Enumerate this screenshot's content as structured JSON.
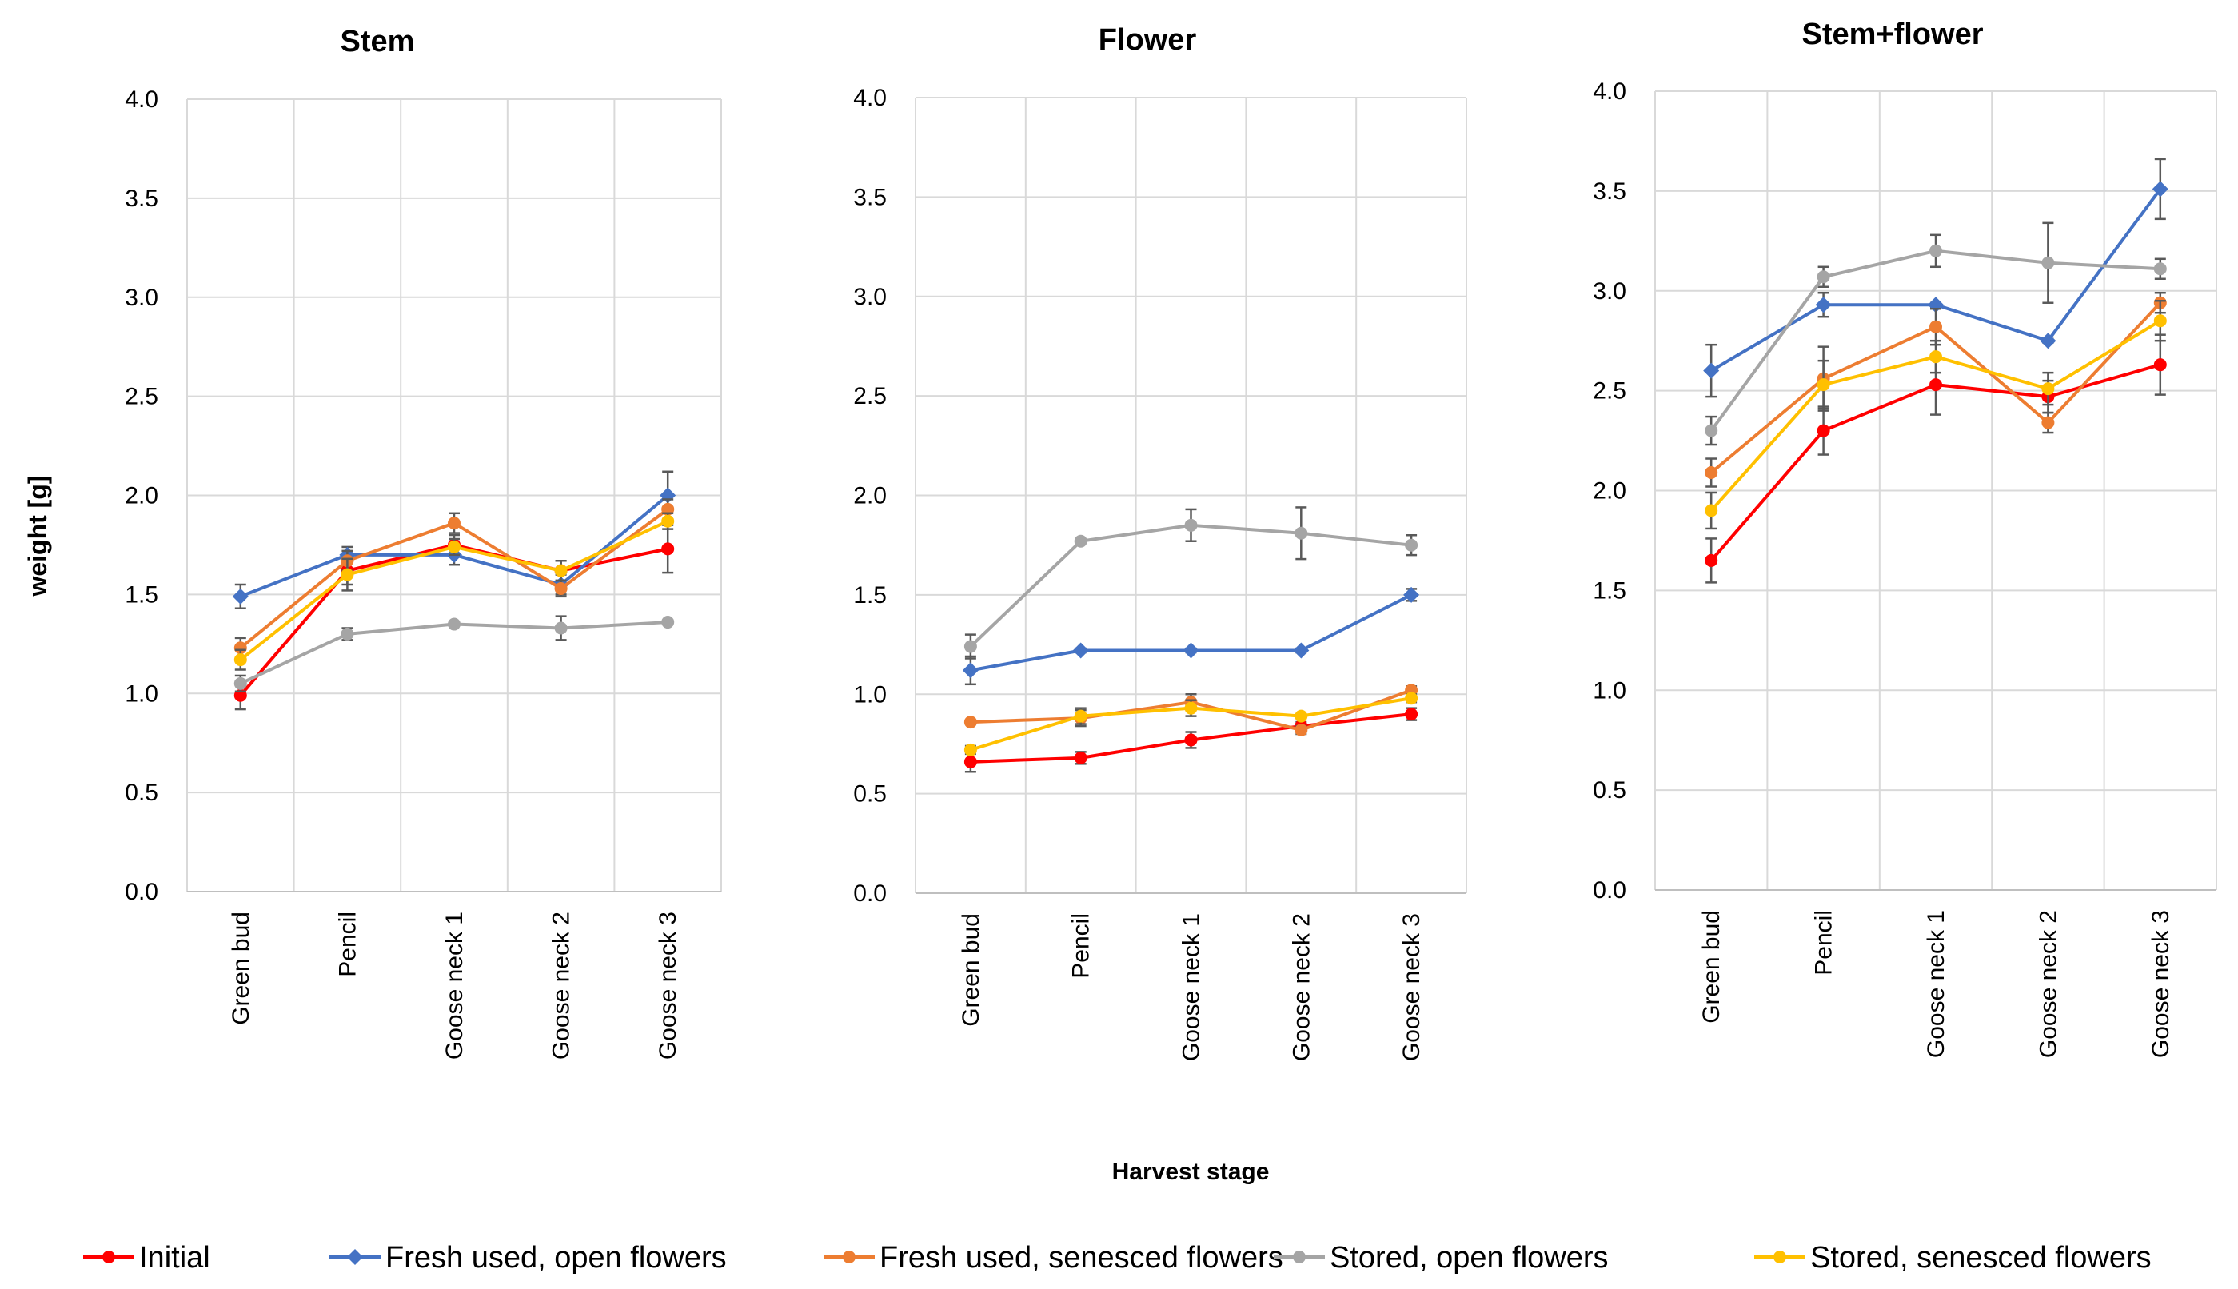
{
  "chart_data": [
    {
      "type": "line",
      "title": "Stem",
      "ylabel": "weight [g]",
      "xlabel": "Harvest stage",
      "ylim": [
        0,
        4
      ],
      "yticks": [
        "0.0",
        "0.5",
        "1.0",
        "1.5",
        "2.0",
        "2.5",
        "3.0",
        "3.5",
        "4.0"
      ],
      "categories": [
        "Green bud",
        "Pencil",
        "Goose neck 1",
        "Goose neck 2",
        "Goose neck 3"
      ],
      "series": [
        {
          "name": "Initial",
          "values": [
            0.99,
            1.62,
            1.75,
            1.62,
            1.73
          ],
          "errors": [
            0.07,
            0.07,
            0.05,
            0.05,
            0.12
          ]
        },
        {
          "name": "Fresh used, open flowers",
          "values": [
            1.49,
            1.7,
            1.7,
            1.55,
            2.0
          ],
          "errors": [
            0.06,
            0.04,
            0.05,
            0.05,
            0.12
          ]
        },
        {
          "name": "Fresh used, senesced flowers",
          "values": [
            1.23,
            1.67,
            1.86,
            1.53,
            1.93
          ],
          "errors": [
            0.05,
            0.05,
            0.05,
            0.04,
            0.05
          ]
        },
        {
          "name": "Stored, open flowers",
          "values": [
            1.05,
            1.3,
            1.35,
            1.33,
            1.36
          ],
          "errors": [
            0.04,
            0.03,
            0.01,
            0.06,
            0.01
          ]
        },
        {
          "name": "Stored, senesced flowers",
          "values": [
            1.17,
            1.6,
            1.74,
            1.62,
            1.87
          ],
          "errors": [
            0.05,
            0.08,
            0.04,
            0.05,
            0.04
          ]
        }
      ]
    },
    {
      "type": "line",
      "title": "Flower",
      "ylim": [
        0,
        4
      ],
      "yticks": [
        "0.0",
        "0.5",
        "1.0",
        "1.5",
        "2.0",
        "2.5",
        "3.0",
        "3.5",
        "4.0"
      ],
      "categories": [
        "Green bud",
        "Pencil",
        "Goose neck 1",
        "Goose neck 2",
        "Goose neck 3"
      ],
      "series": [
        {
          "name": "Initial",
          "values": [
            0.66,
            0.68,
            0.77,
            0.84,
            0.9
          ],
          "errors": [
            0.05,
            0.03,
            0.04,
            0.02,
            0.03
          ]
        },
        {
          "name": "Fresh used, open flowers",
          "values": [
            1.12,
            1.22,
            1.22,
            1.22,
            1.5
          ],
          "errors": [
            0.07,
            0.01,
            0.01,
            0.01,
            0.03
          ]
        },
        {
          "name": "Fresh used, senesced flowers",
          "values": [
            0.86,
            0.88,
            0.96,
            0.82,
            1.02
          ],
          "errors": [
            0.01,
            0.04,
            0.04,
            0.02,
            0.02
          ]
        },
        {
          "name": "Stored, open flowers",
          "values": [
            1.24,
            1.77,
            1.85,
            1.81,
            1.75
          ],
          "errors": [
            0.06,
            0.01,
            0.08,
            0.13,
            0.05
          ]
        },
        {
          "name": "Stored, senesced flowers",
          "values": [
            0.72,
            0.89,
            0.93,
            0.89,
            0.98
          ],
          "errors": [
            0.02,
            0.04,
            0.04,
            0.01,
            0.02
          ]
        }
      ]
    },
    {
      "type": "line",
      "title": "Stem+flower",
      "ylim": [
        0,
        4
      ],
      "yticks": [
        "0.0",
        "0.5",
        "1.0",
        "1.5",
        "2.0",
        "2.5",
        "3.0",
        "3.5",
        "4.0"
      ],
      "categories": [
        "Green bud",
        "Pencil",
        "Goose neck 1",
        "Goose neck 2",
        "Goose neck 3"
      ],
      "series": [
        {
          "name": "Initial",
          "values": [
            1.65,
            2.3,
            2.53,
            2.47,
            2.63
          ],
          "errors": [
            0.11,
            0.12,
            0.15,
            0.08,
            0.15
          ]
        },
        {
          "name": "Fresh used, open flowers",
          "values": [
            2.6,
            2.93,
            2.93,
            2.75,
            3.51
          ],
          "errors": [
            0.13,
            0.06,
            0.01,
            0.01,
            0.15
          ]
        },
        {
          "name": "Fresh used, senesced flowers",
          "values": [
            2.09,
            2.56,
            2.82,
            2.34,
            2.94
          ],
          "errors": [
            0.07,
            0.16,
            0.09,
            0.05,
            0.05
          ]
        },
        {
          "name": "Stored, open flowers",
          "values": [
            2.3,
            3.07,
            3.2,
            3.14,
            3.11
          ],
          "errors": [
            0.07,
            0.05,
            0.08,
            0.2,
            0.05
          ]
        },
        {
          "name": "Stored, senesced flowers",
          "values": [
            1.9,
            2.53,
            2.67,
            2.51,
            2.85
          ],
          "errors": [
            0.09,
            0.12,
            0.08,
            0.08,
            0.1
          ]
        }
      ]
    }
  ],
  "legend": [
    {
      "name": "Initial",
      "color": "#ff0000",
      "marker": "circle"
    },
    {
      "name": "Fresh used, open flowers",
      "color": "#4472c4",
      "marker": "diamond"
    },
    {
      "name": "Fresh used, senesced flowers",
      "color": "#ed7d31",
      "marker": "circle"
    },
    {
      "name": "Stored, open flowers",
      "color": "#a5a5a5",
      "marker": "circle"
    },
    {
      "name": "Stored, senesced flowers",
      "color": "#ffc000",
      "marker": "circle"
    }
  ],
  "shared_ylabel": "weight [g]",
  "shared_xlabel": "Harvest stage"
}
